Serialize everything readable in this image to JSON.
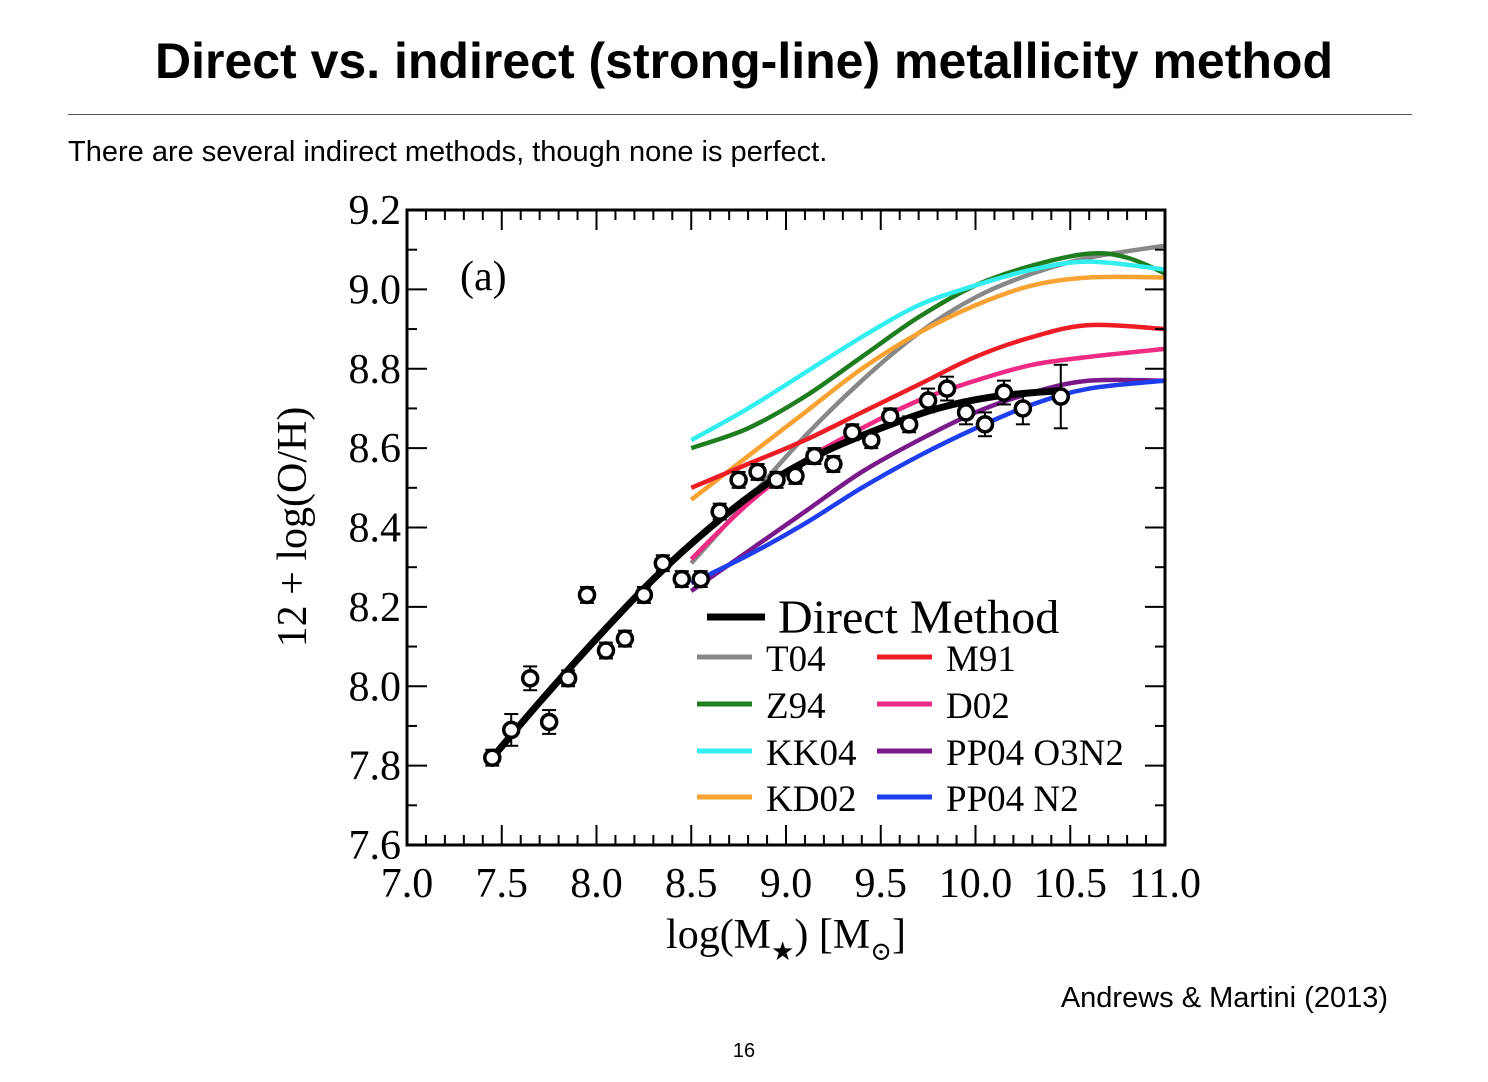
{
  "slide": {
    "title": "Direct vs. indirect (strong-line) metallicity method",
    "subtitle": "There are several indirect methods, though none is perfect.",
    "citation": "Andrews & Martini (2013)",
    "page_number": "16"
  },
  "chart_data": {
    "type": "line",
    "panel_label": "(a)",
    "xlabel": "log(M",
    "xlabel_sub": "★",
    "xlabel_mid": ") [M",
    "xlabel_sub2": "⊙",
    "xlabel_end": "]",
    "ylabel": "12 + log(O/H)",
    "xlim": [
      7.0,
      11.0
    ],
    "ylim": [
      7.6,
      9.2
    ],
    "x_ticks": [
      "7.0",
      "7.5",
      "8.0",
      "8.5",
      "9.0",
      "9.5",
      "10.0",
      "10.5",
      "11.0"
    ],
    "y_ticks": [
      "7.6",
      "7.8",
      "8.0",
      "8.2",
      "8.4",
      "8.6",
      "8.8",
      "9.0",
      "9.2"
    ],
    "legend_position": "bottom-right",
    "grid": false,
    "points": {
      "name": "Direct Method data",
      "x": [
        7.45,
        7.55,
        7.65,
        7.75,
        7.85,
        7.95,
        8.05,
        8.15,
        8.25,
        8.35,
        8.45,
        8.55,
        8.65,
        8.75,
        8.85,
        8.95,
        9.05,
        9.15,
        9.25,
        9.35,
        9.45,
        9.55,
        9.65,
        9.75,
        9.85,
        9.95,
        10.05,
        10.15,
        10.25,
        10.45
      ],
      "y": [
        7.82,
        7.89,
        8.02,
        7.91,
        8.02,
        8.23,
        8.09,
        8.12,
        8.23,
        8.31,
        8.27,
        8.27,
        8.44,
        8.52,
        8.54,
        8.52,
        8.53,
        8.58,
        8.56,
        8.64,
        8.62,
        8.68,
        8.66,
        8.72,
        8.75,
        8.69,
        8.66,
        8.74,
        8.7,
        8.73
      ],
      "yerr": [
        0.02,
        0.04,
        0.03,
        0.03,
        0.02,
        0.02,
        0.02,
        0.02,
        0.02,
        0.02,
        0.02,
        0.02,
        0.02,
        0.02,
        0.02,
        0.02,
        0.02,
        0.02,
        0.02,
        0.02,
        0.02,
        0.02,
        0.02,
        0.03,
        0.03,
        0.03,
        0.03,
        0.03,
        0.04,
        0.08
      ]
    },
    "series": [
      {
        "name": "Direct Method",
        "color": "#000000",
        "x": [
          7.45,
          7.7,
          8.0,
          8.3,
          8.6,
          8.9,
          9.2,
          9.5,
          9.8,
          10.1,
          10.45
        ],
        "y": [
          7.82,
          7.96,
          8.12,
          8.27,
          8.4,
          8.51,
          8.59,
          8.65,
          8.7,
          8.73,
          8.745
        ]
      },
      {
        "name": "T04",
        "color": "#888888",
        "x": [
          8.5,
          8.8,
          9.1,
          9.4,
          9.7,
          10.0,
          10.3,
          10.6,
          11.0
        ],
        "y": [
          8.31,
          8.47,
          8.63,
          8.77,
          8.89,
          8.98,
          9.04,
          9.08,
          9.11
        ]
      },
      {
        "name": "Z94",
        "color": "#1e7d1e",
        "x": [
          8.5,
          8.8,
          9.1,
          9.4,
          9.7,
          10.0,
          10.3,
          10.6,
          10.8,
          11.0
        ],
        "y": [
          8.6,
          8.65,
          8.73,
          8.83,
          8.93,
          9.01,
          9.06,
          9.09,
          9.08,
          9.04
        ]
      },
      {
        "name": "KK04",
        "color": "#33eeee",
        "x": [
          8.5,
          8.8,
          9.1,
          9.4,
          9.7,
          10.0,
          10.3,
          10.6,
          11.0
        ],
        "y": [
          8.62,
          8.7,
          8.79,
          8.88,
          8.96,
          9.01,
          9.05,
          9.07,
          9.05
        ]
      },
      {
        "name": "KD02",
        "color": "#f7a233",
        "x": [
          8.5,
          8.8,
          9.1,
          9.4,
          9.7,
          10.0,
          10.3,
          10.6,
          11.0
        ],
        "y": [
          8.47,
          8.58,
          8.69,
          8.8,
          8.89,
          8.96,
          9.01,
          9.03,
          9.03
        ]
      },
      {
        "name": "M91",
        "color": "#ee1c24",
        "x": [
          8.5,
          8.8,
          9.1,
          9.4,
          9.7,
          10.0,
          10.3,
          10.6,
          11.0
        ],
        "y": [
          8.5,
          8.56,
          8.62,
          8.69,
          8.76,
          8.83,
          8.88,
          8.91,
          8.9
        ]
      },
      {
        "name": "D02",
        "color": "#ee2a85",
        "x": [
          8.5,
          8.8,
          9.1,
          9.4,
          9.7,
          10.0,
          10.3,
          10.6,
          11.0
        ],
        "y": [
          8.32,
          8.46,
          8.57,
          8.65,
          8.72,
          8.77,
          8.81,
          8.83,
          8.85
        ]
      },
      {
        "name": "PP04 O3N2",
        "color": "#7a1a8a",
        "x": [
          8.5,
          8.8,
          9.1,
          9.4,
          9.7,
          10.0,
          10.3,
          10.6,
          11.0
        ],
        "y": [
          8.24,
          8.34,
          8.44,
          8.54,
          8.62,
          8.69,
          8.74,
          8.77,
          8.77
        ]
      },
      {
        "name": "PP04 N2",
        "color": "#1f3ef0",
        "x": [
          8.5,
          8.8,
          9.1,
          9.4,
          9.7,
          10.0,
          10.3,
          10.6,
          11.0
        ],
        "y": [
          8.26,
          8.33,
          8.41,
          8.5,
          8.58,
          8.65,
          8.71,
          8.75,
          8.77
        ]
      }
    ],
    "legend": {
      "main": "Direct Method",
      "left": [
        "T04",
        "Z94",
        "KK04",
        "KD02"
      ],
      "right": [
        "M91",
        "D02",
        "PP04 O3N2",
        "PP04 N2"
      ]
    }
  }
}
